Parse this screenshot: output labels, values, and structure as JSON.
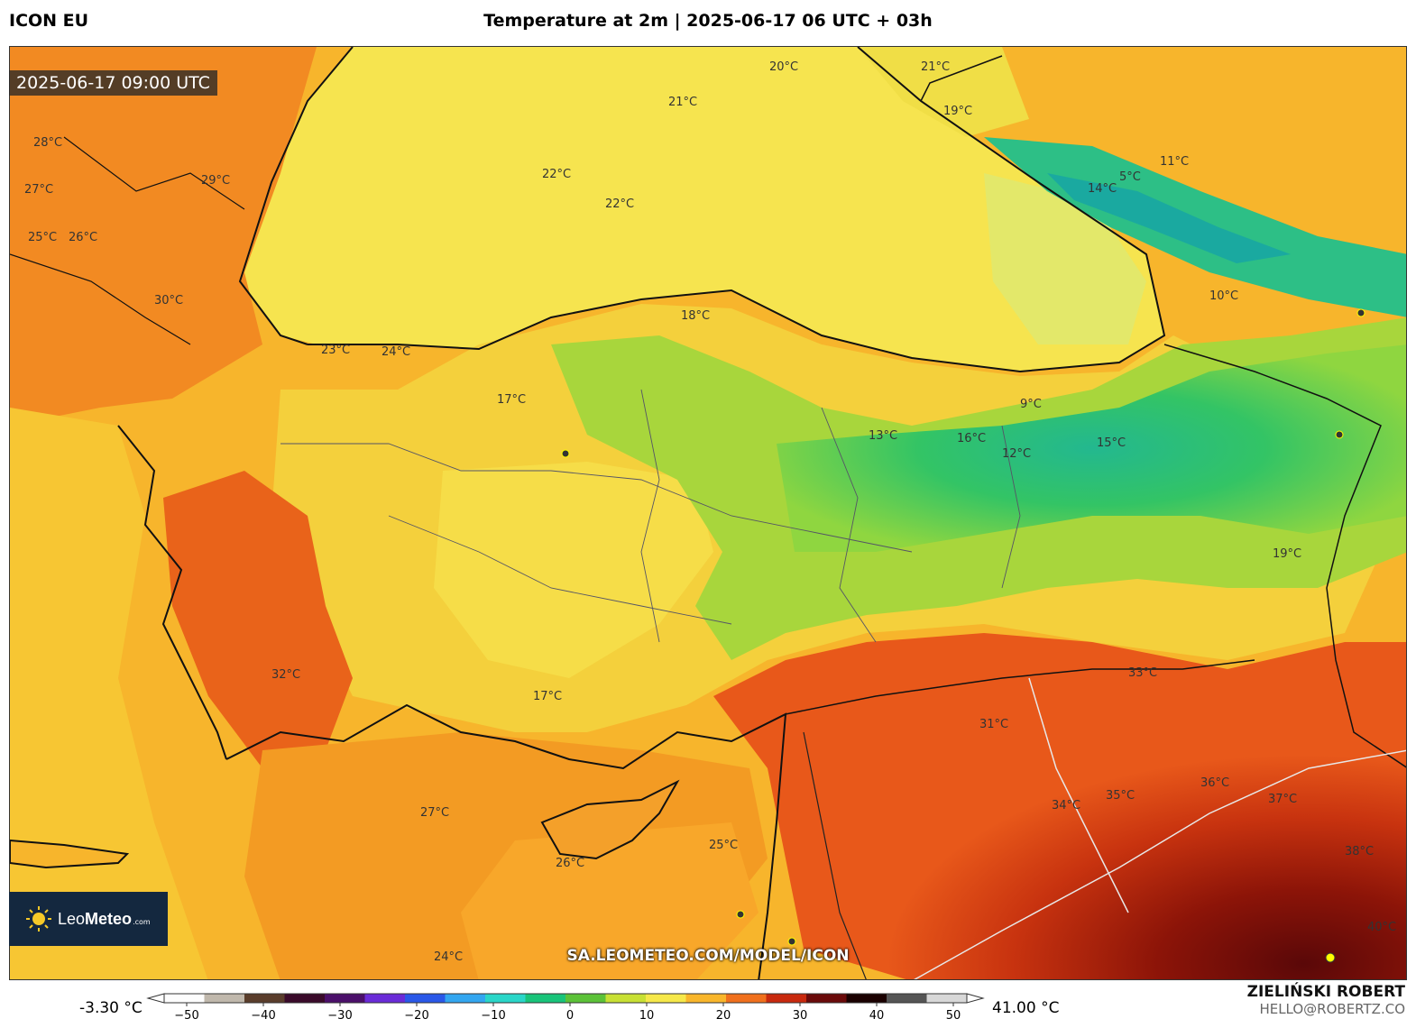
{
  "header": {
    "model": "ICON EU",
    "title": "Temperature at 2m | 2025-06-17 06 UTC + 03h"
  },
  "map": {
    "timestamp": "2025-06-17 09:00 UTC",
    "url": "SA.LEOMETEO.COM/MODEL/ICON",
    "logo": {
      "brand_light": "Leo",
      "brand_bold": "Meteo",
      "suffix": ".com"
    },
    "labels": [
      "20°C",
      "21°C",
      "22°C",
      "23°C",
      "24°C",
      "21°C",
      "19°C",
      "22°C",
      "28°C",
      "29°C",
      "27°C",
      "25°C",
      "26°C",
      "30°C",
      "17°C",
      "18°C",
      "13°C",
      "14°C",
      "10°C",
      "11°C",
      "9°C",
      "5°C",
      "16°C",
      "12°C",
      "15°C",
      "32°C",
      "33°C",
      "31°C",
      "34°C",
      "35°C",
      "36°C",
      "37°C",
      "38°C",
      "40°C",
      "24°C",
      "26°C",
      "27°C",
      "25°C",
      "19°C",
      "17°C"
    ]
  },
  "legend": {
    "min_label": "-3.30 °C",
    "max_label": "41.00 °C",
    "ticks": [
      "−50",
      "−40",
      "−30",
      "−20",
      "−10",
      "0",
      "10",
      "20",
      "30",
      "40",
      "50"
    ],
    "colors": [
      "#fdfdfd",
      "#c0b8ac",
      "#5a3d2b",
      "#3a0a2a",
      "#4b0f6a",
      "#6a2bd8",
      "#2a58e8",
      "#33a6f0",
      "#2ad6c8",
      "#19c47a",
      "#5cc238",
      "#c8e034",
      "#f6e84a",
      "#f9b62b",
      "#f0701d",
      "#c8290e",
      "#6a0a0a",
      "#1a0000",
      "#555555",
      "#d8d8d8"
    ]
  },
  "footer": {
    "author": "ZIELIŃSKI ROBERT",
    "email": "HELLO@ROBERTZ.CO"
  }
}
